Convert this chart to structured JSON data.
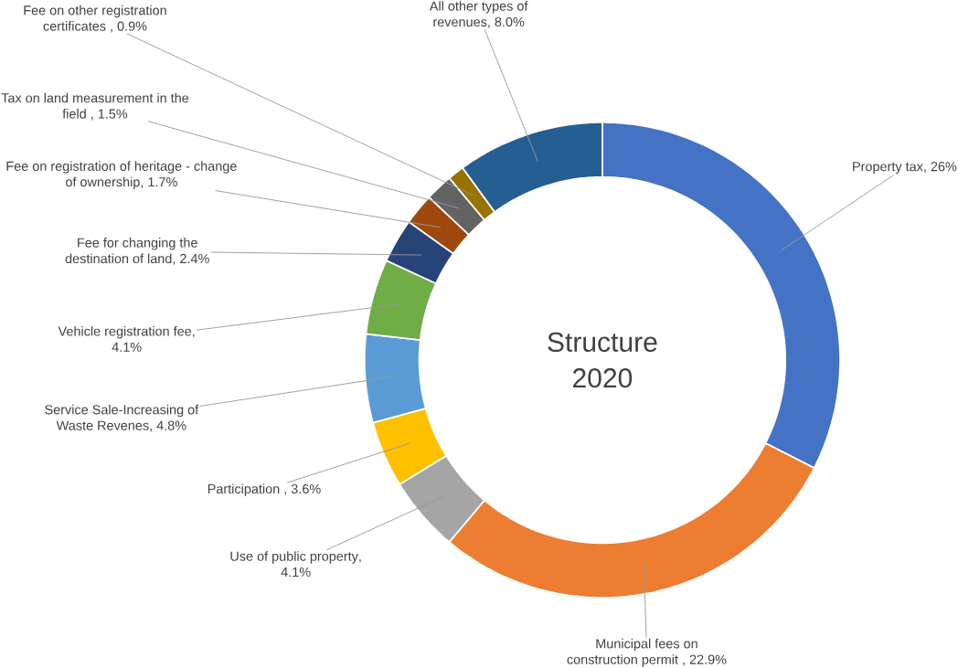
{
  "chart_data": {
    "type": "donut",
    "title": "Structure 2020",
    "categories": [
      "Property tax",
      "Municipal fees on construction permit",
      "Use of public property",
      "Participation",
      "Service Sale-Increasing of Waste Revenes",
      "Vehicle registration fee",
      "Fee for changing the destination of land",
      "Fee on registration of heritage - change of ownership",
      "Tax on land measurement in the field",
      "Fee on other registration certificates",
      "All other types of revenues"
    ],
    "values": [
      26,
      22.9,
      4.1,
      3.6,
      4.8,
      4.1,
      2.4,
      1.7,
      1.5,
      0.9,
      8.0
    ],
    "value_labels": [
      ", 26%",
      " , 22.9%",
      ", 4.1%",
      " , 3.6%",
      ", 4.8%",
      ", 4.1%",
      ", 2.4%",
      ", 1.7%",
      " , 1.5%",
      " , 0.9%",
      ", 8.0%"
    ],
    "colors": [
      "#4472c4",
      "#ed7d31",
      "#a5a5a5",
      "#ffc000",
      "#5b9bd5",
      "#70ad47",
      "#264478",
      "#9e480e",
      "#636363",
      "#997300",
      "#255e91"
    ]
  }
}
